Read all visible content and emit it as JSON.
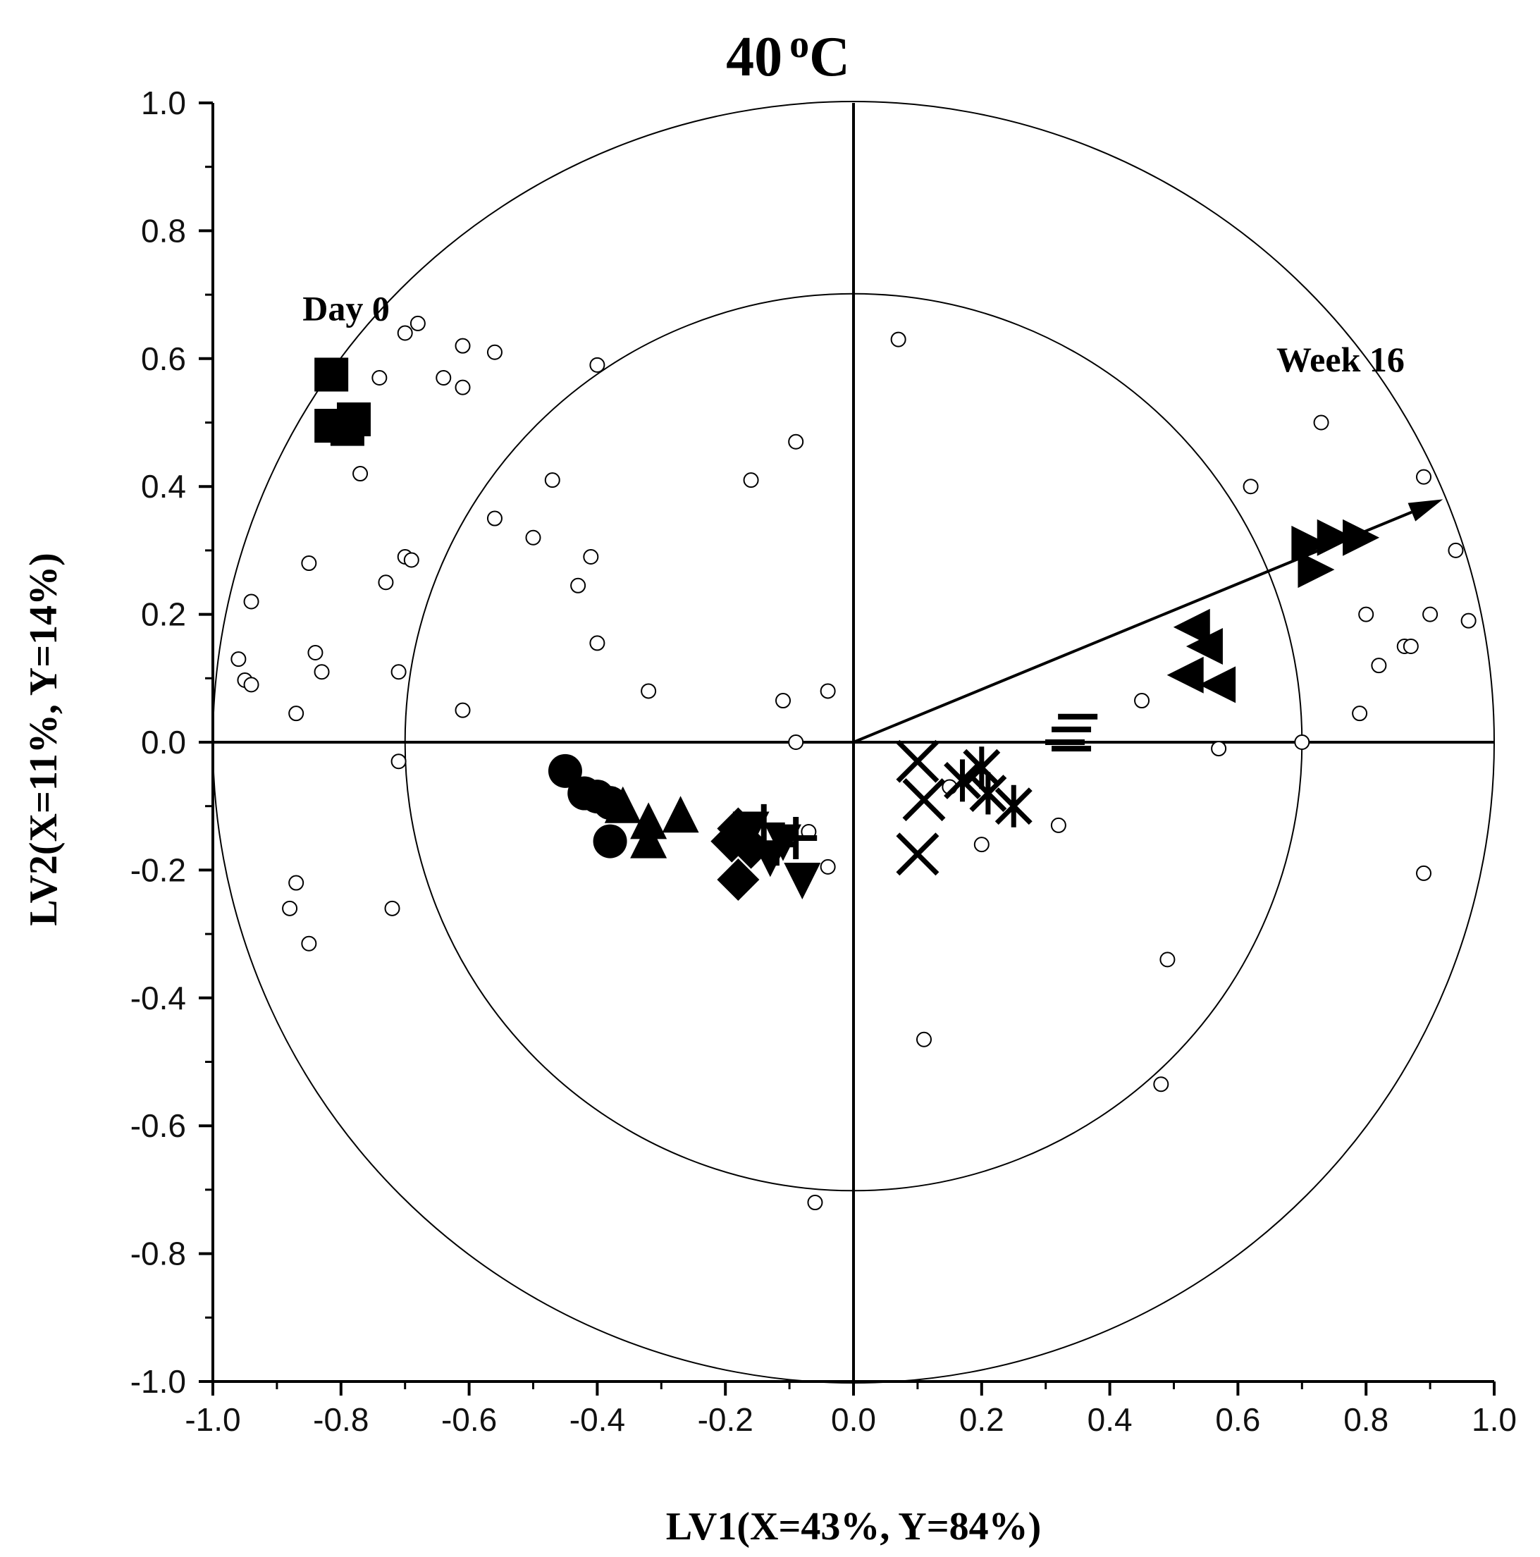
{
  "chart_data": {
    "type": "scatter",
    "title": "40",
    "title_unit": "oC",
    "xlabel": "LV1(X=43%, Y=84%)",
    "ylabel": "LV2(X=11%, Y=14%)",
    "xlim": [
      -1.0,
      1.0
    ],
    "ylim": [
      -1.0,
      1.0
    ],
    "xticks": [
      "-1.0",
      "-0.8",
      "-0.6",
      "-0.4",
      "-0.2",
      "0.0",
      "0.2",
      "0.4",
      "0.6",
      "0.8",
      "1.0"
    ],
    "yticks": [
      "1.0",
      "0.8",
      "0.6",
      "0.4",
      "0.2",
      "0.0",
      "-0.2",
      "-0.4",
      "-0.6",
      "-0.8",
      "-1.0"
    ],
    "circles": [
      0.7,
      1.0
    ],
    "arrow": {
      "from": [
        0,
        0
      ],
      "to": [
        0.92,
        0.38
      ]
    },
    "annotations": [
      {
        "text": "Day 0",
        "x": -0.86,
        "y": 0.66
      },
      {
        "text": "Week 16",
        "x": 0.66,
        "y": 0.58
      }
    ],
    "variables": [
      [
        0.07,
        0.63
      ],
      [
        -0.4,
        0.59
      ],
      [
        -0.7,
        0.64
      ],
      [
        -0.68,
        0.655
      ],
      [
        -0.61,
        0.62
      ],
      [
        -0.56,
        0.61
      ],
      [
        -0.61,
        0.555
      ],
      [
        -0.64,
        0.57
      ],
      [
        -0.74,
        0.57
      ],
      [
        -0.77,
        0.42
      ],
      [
        -0.47,
        0.41
      ],
      [
        -0.09,
        0.47
      ],
      [
        -0.16,
        0.41
      ],
      [
        -0.56,
        0.35
      ],
      [
        -0.5,
        0.32
      ],
      [
        -0.41,
        0.29
      ],
      [
        -0.7,
        0.29
      ],
      [
        -0.69,
        0.285
      ],
      [
        -0.73,
        0.25
      ],
      [
        -0.85,
        0.28
      ],
      [
        -0.43,
        0.245
      ],
      [
        -0.94,
        0.22
      ],
      [
        -0.4,
        0.155
      ],
      [
        -0.84,
        0.14
      ],
      [
        -0.96,
        0.13
      ],
      [
        -0.83,
        0.11
      ],
      [
        -0.71,
        0.11
      ],
      [
        -0.95,
        0.097
      ],
      [
        -0.94,
        0.09
      ],
      [
        -0.32,
        0.08
      ],
      [
        -0.04,
        0.08
      ],
      [
        -0.11,
        0.065
      ],
      [
        -0.61,
        0.05
      ],
      [
        -0.87,
        0.045
      ],
      [
        -0.09,
        0.0
      ],
      [
        -0.71,
        -0.03
      ],
      [
        -0.07,
        -0.14
      ],
      [
        -0.04,
        -0.195
      ],
      [
        -0.87,
        -0.22
      ],
      [
        -0.88,
        -0.26
      ],
      [
        -0.72,
        -0.26
      ],
      [
        -0.85,
        -0.315
      ],
      [
        -0.06,
        -0.72
      ],
      [
        0.11,
        -0.465
      ],
      [
        0.2,
        -0.16
      ],
      [
        0.15,
        -0.07
      ],
      [
        0.32,
        -0.13
      ],
      [
        0.45,
        0.065
      ],
      [
        0.57,
        -0.01
      ],
      [
        0.7,
        0.0
      ],
      [
        0.49,
        -0.34
      ],
      [
        0.48,
        -0.535
      ],
      [
        0.62,
        0.4
      ],
      [
        0.73,
        0.5
      ],
      [
        0.89,
        0.415
      ],
      [
        0.94,
        0.3
      ],
      [
        0.96,
        0.19
      ],
      [
        0.9,
        0.2
      ],
      [
        0.8,
        0.2
      ],
      [
        0.86,
        0.15
      ],
      [
        0.87,
        0.15
      ],
      [
        0.82,
        0.12
      ],
      [
        0.79,
        0.045
      ],
      [
        0.89,
        -0.205
      ]
    ],
    "groups": [
      {
        "name": "squares",
        "marker": "square",
        "points": [
          [
            -0.815,
            0.575
          ],
          [
            -0.815,
            0.495
          ],
          [
            -0.79,
            0.49
          ],
          [
            -0.78,
            0.505
          ]
        ]
      },
      {
        "name": "circles",
        "marker": "circle",
        "points": [
          [
            -0.45,
            -0.045
          ],
          [
            -0.42,
            -0.08
          ],
          [
            -0.4,
            -0.085
          ],
          [
            -0.38,
            -0.095
          ],
          [
            -0.38,
            -0.155
          ]
        ]
      },
      {
        "name": "up-triangles",
        "marker": "triangle-up",
        "points": [
          [
            -0.36,
            -0.1
          ],
          [
            -0.32,
            -0.125
          ],
          [
            -0.32,
            -0.155
          ],
          [
            -0.27,
            -0.115
          ]
        ]
      },
      {
        "name": "diamonds",
        "marker": "diamond",
        "points": [
          [
            -0.18,
            -0.135
          ],
          [
            -0.19,
            -0.155
          ],
          [
            -0.16,
            -0.165
          ],
          [
            -0.18,
            -0.215
          ]
        ]
      },
      {
        "name": "down-triangles",
        "marker": "triangle-down",
        "points": [
          [
            -0.16,
            -0.135
          ],
          [
            -0.13,
            -0.18
          ],
          [
            -0.11,
            -0.155
          ],
          [
            -0.08,
            -0.215
          ]
        ]
      },
      {
        "name": "plus-marks",
        "marker": "plus",
        "points": [
          [
            -0.14,
            -0.13
          ],
          [
            -0.09,
            -0.15
          ],
          [
            -0.12,
            -0.16
          ]
        ]
      },
      {
        "name": "x-marks",
        "marker": "x",
        "points": [
          [
            0.1,
            -0.03
          ],
          [
            0.11,
            -0.09
          ],
          [
            0.1,
            -0.175
          ]
        ]
      },
      {
        "name": "asterisks",
        "marker": "asterisk",
        "points": [
          [
            0.17,
            -0.06
          ],
          [
            0.2,
            -0.04
          ],
          [
            0.21,
            -0.08
          ],
          [
            0.25,
            -0.1
          ]
        ]
      },
      {
        "name": "dashes",
        "marker": "dash",
        "points": [
          [
            0.35,
            0.04
          ],
          [
            0.34,
            0.02
          ],
          [
            0.33,
            0.0
          ],
          [
            0.34,
            -0.01
          ]
        ]
      },
      {
        "name": "left-triangles",
        "marker": "triangle-left",
        "points": [
          [
            0.53,
            0.18
          ],
          [
            0.55,
            0.15
          ],
          [
            0.52,
            0.105
          ],
          [
            0.57,
            0.09
          ]
        ]
      },
      {
        "name": "right-triangles",
        "marker": "triangle-right",
        "points": [
          [
            0.71,
            0.31
          ],
          [
            0.72,
            0.27
          ],
          [
            0.75,
            0.32
          ],
          [
            0.79,
            0.32
          ]
        ]
      }
    ]
  }
}
